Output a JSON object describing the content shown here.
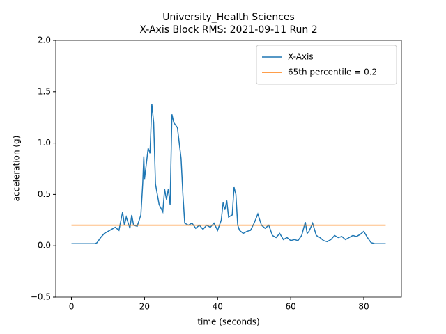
{
  "chart_data": {
    "type": "line",
    "title": "University_Health Sciences",
    "subtitle": "X-Axis Block RMS: 2021-09-11 Run 2",
    "xlabel": "time (seconds)",
    "ylabel": "acceleration (g)",
    "xlim": [
      -4.3,
      90.3
    ],
    "ylim": [
      -0.5,
      2.0
    ],
    "xticks": [
      0,
      20,
      40,
      60,
      80
    ],
    "yticks": [
      {
        "value": -0.5,
        "label": "−0.5"
      },
      {
        "value": 0,
        "label": "0.0"
      },
      0.5,
      {
        "value": 1,
        "label": "1.0"
      },
      1.5,
      {
        "value": 2,
        "label": "2.0"
      }
    ],
    "grid": false,
    "legend": "upper right",
    "series": [
      {
        "name": "X-Axis",
        "color": "#1f77b4",
        "x": [
          0,
          6.5,
          7,
          8,
          9,
          10,
          11,
          12,
          13,
          14,
          14.5,
          15,
          16,
          16.5,
          17,
          18,
          19,
          19.5,
          19.8,
          20,
          20.5,
          21,
          21.5,
          22,
          22.5,
          23,
          24,
          25,
          25.5,
          26,
          26.5,
          27,
          27.5,
          28,
          29,
          30,
          30.5,
          31,
          32,
          33,
          34,
          35,
          36,
          37,
          38,
          39,
          40,
          41,
          41.5,
          42,
          42.5,
          43,
          44,
          44.5,
          45,
          45.5,
          46,
          47,
          48,
          49,
          50,
          51,
          52,
          53,
          54,
          55,
          56,
          57,
          58,
          59,
          60,
          61,
          62,
          63,
          64,
          64.5,
          65,
          66,
          67,
          68,
          69,
          70,
          71,
          72,
          73,
          74,
          75,
          76,
          77,
          78,
          79,
          80,
          81,
          82,
          83,
          86
        ],
        "values": [
          0.02,
          0.02,
          0.03,
          0.08,
          0.12,
          0.14,
          0.16,
          0.18,
          0.15,
          0.33,
          0.2,
          0.28,
          0.17,
          0.3,
          0.2,
          0.19,
          0.3,
          0.6,
          0.87,
          0.65,
          0.8,
          0.95,
          0.9,
          1.38,
          1.2,
          0.6,
          0.4,
          0.33,
          0.55,
          0.45,
          0.55,
          0.4,
          1.28,
          1.2,
          1.15,
          0.85,
          0.5,
          0.22,
          0.2,
          0.22,
          0.17,
          0.2,
          0.16,
          0.2,
          0.18,
          0.22,
          0.15,
          0.25,
          0.42,
          0.35,
          0.44,
          0.28,
          0.3,
          0.57,
          0.5,
          0.2,
          0.15,
          0.12,
          0.14,
          0.15,
          0.22,
          0.31,
          0.2,
          0.17,
          0.2,
          0.1,
          0.08,
          0.12,
          0.06,
          0.08,
          0.05,
          0.06,
          0.05,
          0.1,
          0.23,
          0.12,
          0.14,
          0.22,
          0.1,
          0.08,
          0.05,
          0.04,
          0.06,
          0.1,
          0.08,
          0.09,
          0.06,
          0.08,
          0.1,
          0.09,
          0.11,
          0.14,
          0.08,
          0.03,
          0.02,
          0.02
        ]
      },
      {
        "name": "65th percentile = 0.2",
        "color": "#ff7f0e",
        "x": [
          0,
          86
        ],
        "values": [
          0.2,
          0.2
        ]
      }
    ]
  }
}
